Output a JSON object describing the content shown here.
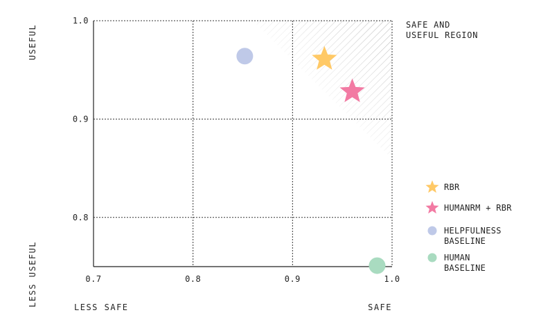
{
  "chart_data": {
    "type": "scatter",
    "xlim": [
      0.7,
      1.0
    ],
    "ylim": [
      0.75,
      1.0
    ],
    "x_ticks": [
      "0.7",
      "0.8",
      "0.9",
      "1.0"
    ],
    "x_tick_values": [
      0.7,
      0.8,
      0.9,
      1.0
    ],
    "y_ticks": [
      "1.0",
      "0.9",
      "0.8"
    ],
    "y_tick_values": [
      1.0,
      0.9,
      0.8
    ],
    "x_axis_words": {
      "low": "LESS SAFE",
      "high": "SAFE"
    },
    "y_axis_words": {
      "low": "LESS USEFUL",
      "high": "USEFUL"
    },
    "grid": true,
    "region": {
      "label_lines": [
        "SAFE AND",
        "USEFUL REGION"
      ],
      "pattern": "diagonal hatching, top-right"
    },
    "legend_position": "right",
    "series": [
      {
        "name_lines": [
          "RBR"
        ],
        "marker": "star",
        "color": "#FFC966",
        "x": 0.932,
        "y": 0.961
      },
      {
        "name_lines": [
          "HUMANRM + RBR"
        ],
        "marker": "star",
        "color": "#F27AA3",
        "x": 0.96,
        "y": 0.928
      },
      {
        "name_lines": [
          "HELPFULNESS",
          "BASELINE"
        ],
        "marker": "circle",
        "color": "#BFC9E8",
        "x": 0.852,
        "y": 0.964
      },
      {
        "name_lines": [
          "HUMAN",
          "BASELINE"
        ],
        "marker": "circle",
        "color": "#A9DBC0",
        "x": 0.985,
        "y": 0.751
      }
    ]
  }
}
